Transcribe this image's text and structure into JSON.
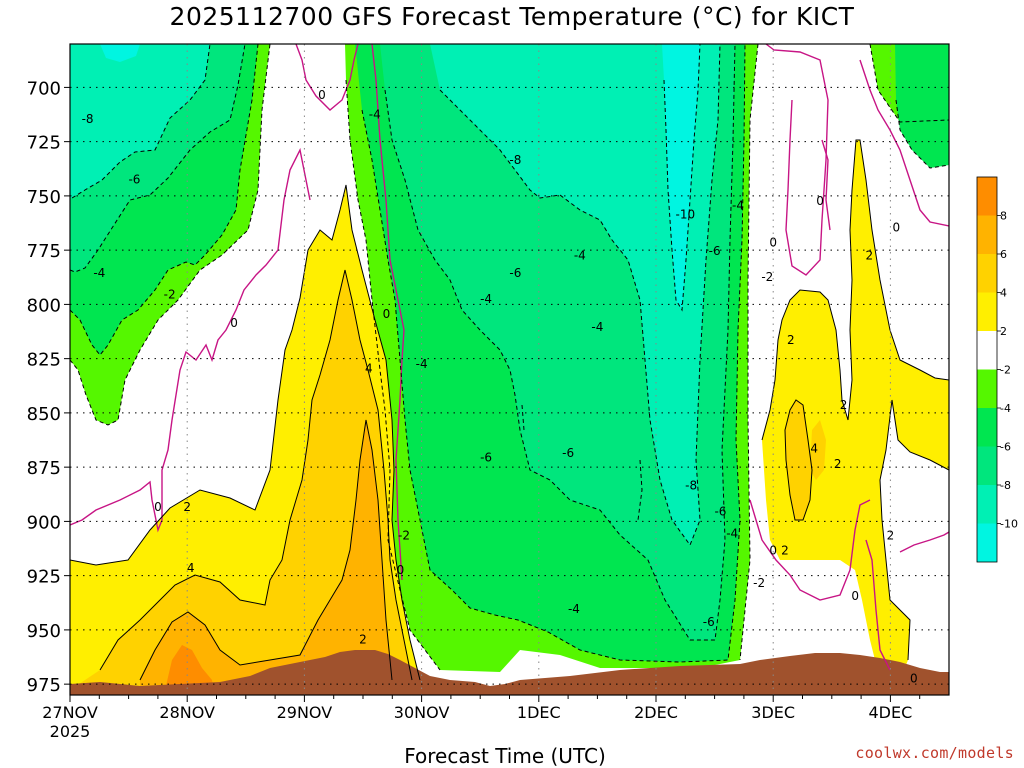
{
  "chart_data": {
    "type": "heatmap",
    "title": "2025112700 GFS Forecast Temperature (°C) for KICT",
    "xlabel": "Forecast Time (UTC)",
    "ylabel": "",
    "x_ticks": [
      "27NOV",
      "28NOV",
      "29NOV",
      "30NOV",
      "1DEC",
      "2DEC",
      "3DEC",
      "4DEC"
    ],
    "x_tick_sublabel": "2025",
    "y_ticks": [
      700,
      725,
      750,
      775,
      800,
      825,
      850,
      875,
      900,
      925,
      950,
      975
    ],
    "ylim": [
      680,
      980
    ],
    "xlim": [
      0,
      7.5
    ],
    "grid": true,
    "colorbar": {
      "ticks": [
        8,
        6,
        4,
        2,
        -2,
        -4,
        -6,
        -8,
        -10
      ],
      "bins": [
        {
          "color": "#fe8d00",
          "range": [
            8,
            10
          ]
        },
        {
          "color": "#ffb300",
          "range": [
            6,
            8
          ]
        },
        {
          "color": "#ffd200",
          "range": [
            4,
            6
          ]
        },
        {
          "color": "#ffef00",
          "range": [
            2,
            4
          ]
        },
        {
          "color": "#ffffff",
          "range": [
            -2,
            2
          ]
        },
        {
          "color": "#55f700",
          "range": [
            -4,
            -2
          ]
        },
        {
          "color": "#00e650",
          "range": [
            -6,
            -4
          ]
        },
        {
          "color": "#00e67d",
          "range": [
            -8,
            -6
          ]
        },
        {
          "color": "#00f0b4",
          "range": [
            -10,
            -8
          ]
        },
        {
          "color": "#00f5e1",
          "range": [
            -12,
            -10
          ]
        }
      ]
    },
    "contour_labels": [
      {
        "t": 0.15,
        "p": 714,
        "text": "-8"
      },
      {
        "t": 0.55,
        "p": 742,
        "text": "-6"
      },
      {
        "t": 0.25,
        "p": 785,
        "text": "-4"
      },
      {
        "t": 0.85,
        "p": 795,
        "text": "-2"
      },
      {
        "t": 1.4,
        "p": 808,
        "text": "0"
      },
      {
        "t": 2.15,
        "p": 703,
        "text": "0"
      },
      {
        "t": 2.6,
        "p": 712,
        "text": "-4"
      },
      {
        "t": 2.7,
        "p": 804,
        "text": "0"
      },
      {
        "t": 2.55,
        "p": 829,
        "text": "4"
      },
      {
        "t": 2.5,
        "p": 954,
        "text": "2"
      },
      {
        "t": 2.85,
        "p": 906,
        "text": "-2"
      },
      {
        "t": 2.82,
        "p": 922,
        "text": "0"
      },
      {
        "t": 3.0,
        "p": 827,
        "text": "-4"
      },
      {
        "t": 0.75,
        "p": 893,
        "text": "0"
      },
      {
        "t": 1.0,
        "p": 893,
        "text": "2"
      },
      {
        "t": 1.03,
        "p": 921,
        "text": "4"
      },
      {
        "t": 3.55,
        "p": 870,
        "text": "-6"
      },
      {
        "t": 3.8,
        "p": 733,
        "text": "-8"
      },
      {
        "t": 3.8,
        "p": 785,
        "text": "-6"
      },
      {
        "t": 3.55,
        "p": 797,
        "text": "-4"
      },
      {
        "t": 4.35,
        "p": 777,
        "text": "-4"
      },
      {
        "t": 4.5,
        "p": 810,
        "text": "-4"
      },
      {
        "t": 4.25,
        "p": 868,
        "text": "-6"
      },
      {
        "t": 4.3,
        "p": 940,
        "text": "-4"
      },
      {
        "t": 5.25,
        "p": 758,
        "text": "-10"
      },
      {
        "t": 5.3,
        "p": 883,
        "text": "-8"
      },
      {
        "t": 5.5,
        "p": 775,
        "text": "-6"
      },
      {
        "t": 5.7,
        "p": 754,
        "text": "-4"
      },
      {
        "t": 5.55,
        "p": 895,
        "text": "-6"
      },
      {
        "t": 5.65,
        "p": 905,
        "text": "-4"
      },
      {
        "t": 5.45,
        "p": 946,
        "text": "-6"
      },
      {
        "t": 5.95,
        "p": 787,
        "text": "-2"
      },
      {
        "t": 5.88,
        "p": 928,
        "text": "-2"
      },
      {
        "t": 6.0,
        "p": 771,
        "text": "0"
      },
      {
        "t": 6.0,
        "p": 913,
        "text": "0"
      },
      {
        "t": 6.1,
        "p": 913,
        "text": "2"
      },
      {
        "t": 6.15,
        "p": 816,
        "text": "2"
      },
      {
        "t": 6.4,
        "p": 752,
        "text": "0"
      },
      {
        "t": 6.6,
        "p": 846,
        "text": "2"
      },
      {
        "t": 6.35,
        "p": 866,
        "text": "4"
      },
      {
        "t": 6.55,
        "p": 873,
        "text": "2"
      },
      {
        "t": 6.82,
        "p": 777,
        "text": "2"
      },
      {
        "t": 7.05,
        "p": 764,
        "text": "0"
      },
      {
        "t": 6.7,
        "p": 934,
        "text": "0"
      },
      {
        "t": 7.0,
        "p": 906,
        "text": "2"
      },
      {
        "t": 7.2,
        "p": 972,
        "text": "0"
      }
    ]
  },
  "credit": "coolwx.com/models"
}
